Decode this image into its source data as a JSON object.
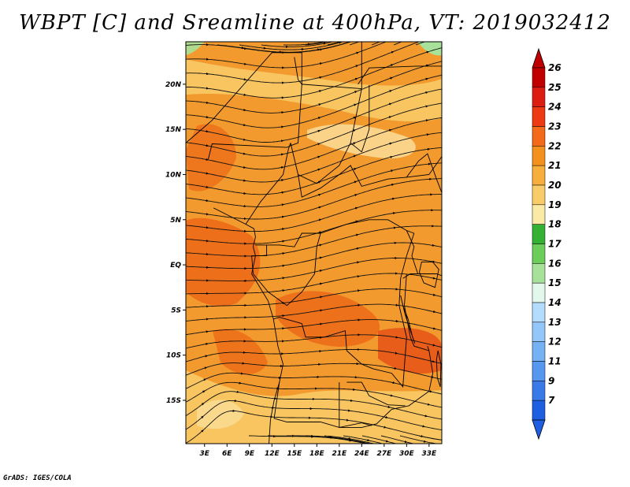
{
  "title": "WBPT [C] and Sreamline at 400hPa, VT: 2019032412",
  "credit": "GrADS: IGES/COLA",
  "map": {
    "variable": "Wet-bulb potential temperature",
    "units": "C",
    "level": "400hPa",
    "valid_time": "2019032412",
    "background_color": "#f29a2e",
    "lon_labels": [
      "3E",
      "6E",
      "9E",
      "12E",
      "15E",
      "18E",
      "21E",
      "24E",
      "27E",
      "30E",
      "33E"
    ],
    "lon_values": [
      3,
      6,
      9,
      12,
      15,
      18,
      21,
      24,
      27,
      30,
      33
    ],
    "lat_labels": [
      "20N",
      "15N",
      "10N",
      "5N",
      "EQ",
      "5S",
      "10S",
      "15S"
    ],
    "lat_values": [
      20,
      15,
      10,
      5,
      0,
      -5,
      -10,
      -15
    ],
    "lon_range": [
      0.5,
      34.7
    ],
    "lat_range": [
      -19.8,
      24.7
    ]
  },
  "colorbar": {
    "labels": [
      "26",
      "25",
      "24",
      "23",
      "22",
      "21",
      "20",
      "19",
      "18",
      "17",
      "16",
      "15",
      "14",
      "13",
      "12",
      "11",
      "9",
      "7"
    ],
    "colors": [
      "#c00000",
      "#dc1e12",
      "#ec3a14",
      "#f26a1a",
      "#f4901e",
      "#f7ae3c",
      "#f9cc6a",
      "#fbe9a6",
      "#34b035",
      "#6ccd5a",
      "#a8e29a",
      "#e2f8ec",
      "#b4dcfc",
      "#94c7f9",
      "#76b1f4",
      "#5897ef",
      "#3a7ae8",
      "#1e5ee0"
    ]
  },
  "icons": {
    "map": "streamline-map",
    "arrow_up": "colorbar-overflow-arrow-up",
    "arrow_down": "colorbar-overflow-arrow-down"
  }
}
